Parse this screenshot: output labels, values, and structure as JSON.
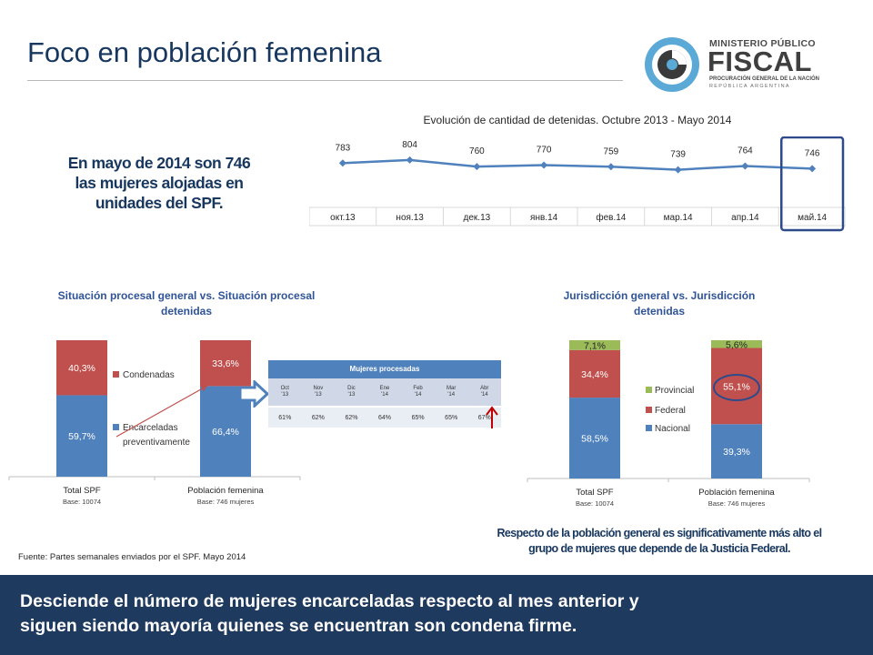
{
  "title": "Foco en población femenina",
  "logo": {
    "line1": "MINISTERIO PÚBLICO",
    "line2": "FISCAL",
    "line3": "PROCURACIÓN GENERAL DE LA NACIÓN",
    "line4": "REPÚBLICA ARGENTINA"
  },
  "highlight": [
    "En mayo de 2014 son 746",
    "las mujeres alojadas en",
    "unidades del SPF."
  ],
  "footnote": "Fuente: Partes semanales enviados por el SPF. Mayo 2014",
  "right_note": [
    "Respecto de la población general es significativamente más alto el",
    "grupo de mujeres que depende de la Justicia Federal."
  ],
  "banner": [
    "Desciende el número de mujeres encarceladas respecto al mes anterior y",
    "siguen siendo mayoría quienes se encuentran son condena firme."
  ],
  "colors": {
    "blue": "#4f81bd",
    "red": "#c0504d",
    "green": "#9bbb59",
    "navy": "#17375e",
    "frame": "#2f4a8a"
  },
  "procesadas_table": {
    "header": "Mujeres procesadas",
    "months": [
      [
        "Oct",
        "'13"
      ],
      [
        "Nov",
        "'13"
      ],
      [
        "Dic",
        "'13"
      ],
      [
        "Ene",
        "'14"
      ],
      [
        "Feb",
        "'14"
      ],
      [
        "Mar",
        "'14"
      ],
      [
        "Abr",
        "'14"
      ]
    ],
    "values": [
      "61%",
      "62%",
      "62%",
      "64%",
      "65%",
      "65%",
      "67%"
    ]
  },
  "chart_data": [
    {
      "type": "line",
      "title": "Evolución de cantidad de detenidas. Octubre 2013 - Mayo 2014",
      "categories": [
        "окт.13",
        "ноя.13",
        "дек.13",
        "янв.14",
        "фев.14",
        "мар.14",
        "апр.14",
        "май.14"
      ],
      "values": [
        783,
        804,
        760,
        770,
        759,
        739,
        764,
        746
      ],
      "ylim": [
        500,
        900
      ],
      "highlighted_category": "май.14"
    },
    {
      "type": "bar",
      "stacked": true,
      "title": "Situación procesal general vs. Situación procesal detenidas",
      "categories": [
        "Total SPF",
        "Población femenina"
      ],
      "bases": [
        "Base: 10074",
        "Base: 746 mujeres"
      ],
      "series": [
        {
          "name": "Encarceladas preventivamente",
          "labels": [
            "59,7%",
            "66,4%"
          ],
          "values": [
            59.7,
            66.4
          ],
          "color": "#4f81bd"
        },
        {
          "name": "Condenadas",
          "labels": [
            "40,3%",
            "33,6%"
          ],
          "values": [
            40.3,
            33.6
          ],
          "color": "#c0504d"
        }
      ],
      "legend_labels": [
        "Condenadas",
        "Encarceladas",
        "preventivamente"
      ]
    },
    {
      "type": "bar",
      "stacked": true,
      "title": "Jurisdicción general vs. Jurisdicción detenidas",
      "categories": [
        "Total SPF",
        "Población femenina"
      ],
      "bases": [
        "Base: 10074",
        "Base: 746 mujeres"
      ],
      "series": [
        {
          "name": "Nacional",
          "labels": [
            "58,5%",
            "39,3%"
          ],
          "values": [
            58.5,
            39.3
          ],
          "color": "#4f81bd"
        },
        {
          "name": "Federal",
          "labels": [
            "34,4%",
            "55,1%"
          ],
          "values": [
            34.4,
            55.1
          ],
          "color": "#c0504d"
        },
        {
          "name": "Provincial",
          "labels": [
            "7,1%",
            "5,6%"
          ],
          "values": [
            7.1,
            5.6
          ],
          "color": "#9bbb59"
        }
      ],
      "legend_order": [
        "Provincial",
        "Federal",
        "Nacional"
      ]
    }
  ]
}
